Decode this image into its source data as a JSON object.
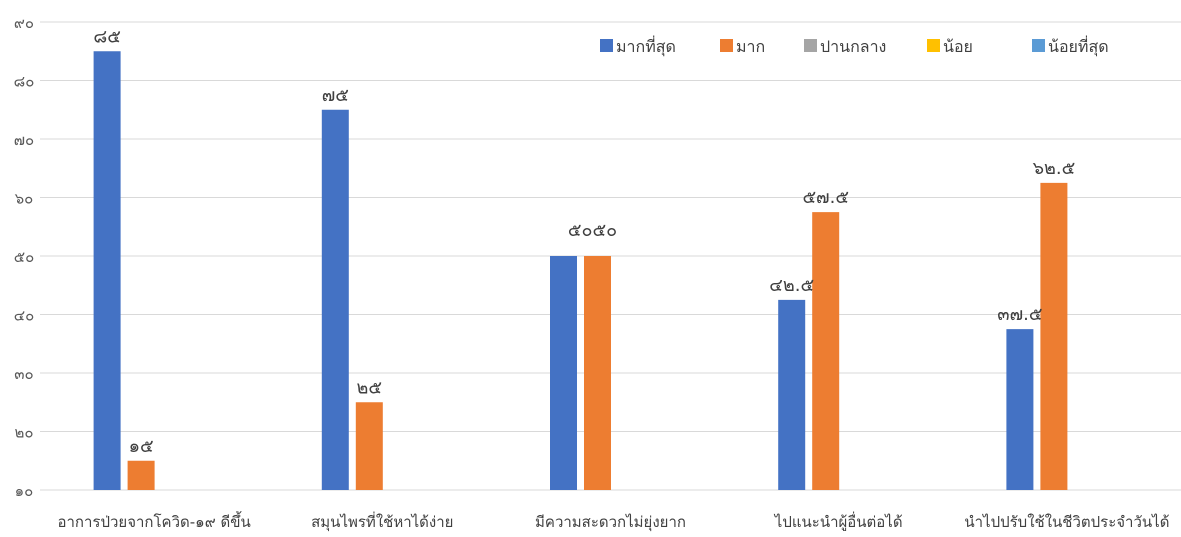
{
  "chart_data": {
    "type": "bar",
    "title": "",
    "xlabel": "",
    "ylabel": "",
    "ylim": [
      10,
      90
    ],
    "yticks": [
      10,
      20,
      30,
      40,
      50,
      60,
      70,
      80,
      90
    ],
    "ytick_labels": [
      "๑๐",
      "๒๐",
      "๓๐",
      "๔๐",
      "๕๐",
      "๖๐",
      "๗๐",
      "๘๐",
      "๙๐"
    ],
    "grid": true,
    "legend_position": "top-right",
    "categories": [
      "อาการป่วยจากโควิด-๑๙ ดีขึ้น",
      "สมุนไพรที่ใช้หาได้ง่าย",
      "มีความสะดวกไม่ยุ่งยาก",
      "ไปแนะนำผู้อื่นต่อได้",
      "นำไปปรับใช้ในชีวิตประจำวันได้"
    ],
    "series": [
      {
        "name": "มากที่สุด",
        "color": "#4472C4",
        "values": [
          85,
          75,
          50,
          42.5,
          37.5
        ],
        "labels": [
          "๘๕",
          "๗๕",
          "",
          "๔๒.๕",
          "๓๗.๕"
        ]
      },
      {
        "name": "มาก",
        "color": "#ED7D31",
        "values": [
          15,
          25,
          50,
          57.5,
          62.5
        ],
        "labels": [
          "๑๕",
          "๒๕",
          "",
          "๕๗.๕",
          "๖๒.๕"
        ]
      },
      {
        "name": "ปานกลาง",
        "color": "#A5A5A5",
        "values": [
          null,
          null,
          null,
          null,
          null
        ],
        "labels": [
          "",
          "",
          "",
          "",
          ""
        ]
      },
      {
        "name": "น้อย",
        "color": "#FFC000",
        "values": [
          null,
          null,
          null,
          null,
          null
        ],
        "labels": [
          "",
          "",
          "",
          "",
          ""
        ]
      },
      {
        "name": "น้อยที่สุด",
        "color": "#5B9BD5",
        "values": [
          null,
          null,
          null,
          null,
          null
        ],
        "labels": [
          "",
          "",
          "",
          "",
          ""
        ]
      }
    ],
    "combined_labels": [
      {
        "category_index": 2,
        "text": "๕๐๕๐"
      }
    ]
  }
}
